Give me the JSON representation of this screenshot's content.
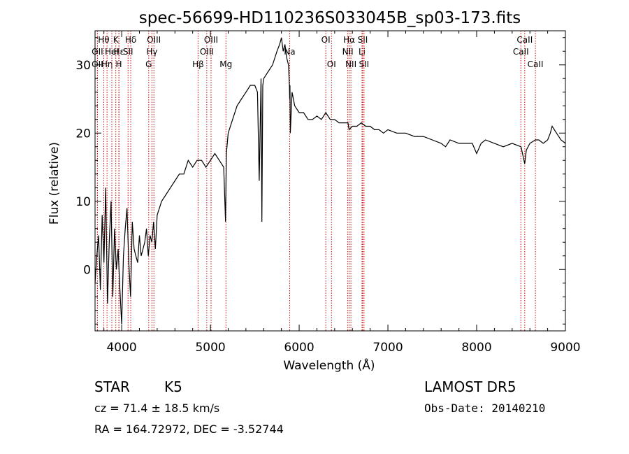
{
  "chart_data": {
    "type": "line",
    "title": "spec-56699-HD110236S033045B_sp03-173.fits",
    "xlabel": "Wavelength (Å)",
    "ylabel": "Flux (relative)",
    "xlim": [
      3700,
      9000
    ],
    "ylim": [
      -9,
      35
    ],
    "x_ticks": [
      4000,
      5000,
      6000,
      7000,
      8000,
      9000
    ],
    "y_ticks": [
      0,
      10,
      20,
      30
    ],
    "grid": false,
    "series": [
      {
        "x": [
          3700,
          3720,
          3740,
          3760,
          3780,
          3800,
          3820,
          3840,
          3860,
          3880,
          3900,
          3920,
          3940,
          3960,
          3980,
          4000,
          4020,
          4040,
          4060,
          4080,
          4100,
          4120,
          4140,
          4160,
          4180,
          4200,
          4220,
          4240,
          4260,
          4280,
          4300,
          4320,
          4340,
          4360,
          4380,
          4400,
          4450,
          4500,
          4550,
          4600,
          4650,
          4700,
          4750,
          4800,
          4850,
          4900,
          4950,
          5000,
          5050,
          5100,
          5150,
          5170,
          5180,
          5200,
          5250,
          5300,
          5350,
          5400,
          5450,
          5500,
          5530,
          5550,
          5570,
          5580,
          5590,
          5600,
          5650,
          5700,
          5750,
          5780,
          5800,
          5820,
          5840,
          5860,
          5880,
          5890,
          5893,
          5896,
          5900,
          5920,
          5950,
          6000,
          6050,
          6100,
          6150,
          6200,
          6250,
          6300,
          6350,
          6400,
          6450,
          6500,
          6550,
          6563,
          6600,
          6650,
          6700,
          6750,
          6800,
          6850,
          6900,
          6950,
          7000,
          7100,
          7200,
          7300,
          7400,
          7500,
          7600,
          7650,
          7700,
          7800,
          7900,
          7950,
          8000,
          8050,
          8100,
          8200,
          8300,
          8400,
          8500,
          8542,
          8560,
          8600,
          8662,
          8700,
          8750,
          8800,
          8830,
          8850,
          8900,
          8950,
          9000
        ],
        "y": [
          -2,
          2,
          5,
          -3,
          8,
          1,
          12,
          -5,
          4,
          10,
          -4,
          6,
          0,
          3,
          -3,
          -8,
          2,
          6,
          9,
          1,
          -4,
          7,
          3,
          2,
          1,
          5,
          2,
          3,
          4,
          6,
          2,
          5,
          4,
          7,
          3,
          8,
          10,
          11,
          12,
          13,
          14,
          14,
          16,
          15,
          16,
          16,
          15,
          16,
          17,
          16,
          15,
          7,
          17,
          20,
          22,
          24,
          25,
          26,
          27,
          27,
          26,
          13,
          28,
          7,
          27,
          28,
          29,
          30,
          32,
          33,
          34,
          32,
          33,
          31,
          30,
          27,
          25,
          27,
          20,
          26,
          24,
          23,
          23,
          22,
          22,
          22.5,
          22,
          23,
          22,
          22,
          21.5,
          21.5,
          21.5,
          20.5,
          21,
          21,
          21.5,
          21,
          21,
          20.5,
          20.5,
          20,
          20.5,
          20,
          20,
          19.5,
          19.5,
          19,
          18.5,
          18,
          19,
          18.5,
          18.5,
          18.5,
          17,
          18.5,
          19,
          18.5,
          18,
          18.5,
          18,
          15.5,
          17.5,
          18.5,
          19,
          19,
          18.5,
          19,
          20,
          21,
          20,
          19,
          18.5
        ]
      }
    ],
    "line_markers": [
      {
        "label": "Hθ",
        "x": 3798,
        "row": 0
      },
      {
        "label": "Hη",
        "x": 3835,
        "row": 2
      },
      {
        "label": "K",
        "x": 3934,
        "row": 0
      },
      {
        "label": "Hε",
        "x": 3970,
        "row": 1
      },
      {
        "label": "H",
        "x": 3968,
        "row": 2
      },
      {
        "label": "OII",
        "x": 3727,
        "row": 1
      },
      {
        "label": "OII",
        "x": 3727,
        "row": 2
      },
      {
        "label": "HeI",
        "x": 3889,
        "row": 1
      },
      {
        "label": "Hδ",
        "x": 4102,
        "row": 0
      },
      {
        "label": "SII",
        "x": 4072,
        "row": 1
      },
      {
        "label": "OIII",
        "x": 4363,
        "row": 0
      },
      {
        "label": "Hγ",
        "x": 4341,
        "row": 1
      },
      {
        "label": "G",
        "x": 4305,
        "row": 2
      },
      {
        "label": "Hβ",
        "x": 4861,
        "row": 2
      },
      {
        "label": "OIII",
        "x": 4959,
        "row": 1
      },
      {
        "label": "OIII",
        "x": 5007,
        "row": 0
      },
      {
        "label": "Mg",
        "x": 5175,
        "row": 2
      },
      {
        "label": "Na",
        "x": 5893,
        "row": 1
      },
      {
        "label": "OI",
        "x": 6300,
        "row": 0
      },
      {
        "label": "OI",
        "x": 6364,
        "row": 2
      },
      {
        "label": "Hα",
        "x": 6563,
        "row": 0
      },
      {
        "label": "NII",
        "x": 6548,
        "row": 1
      },
      {
        "label": "NII",
        "x": 6583,
        "row": 2
      },
      {
        "label": "SII",
        "x": 6716,
        "row": 0
      },
      {
        "label": "Li",
        "x": 6708,
        "row": 1
      },
      {
        "label": "SII",
        "x": 6731,
        "row": 2
      },
      {
        "label": "CaII",
        "x": 8542,
        "row": 0
      },
      {
        "label": "CaII",
        "x": 8498,
        "row": 1
      },
      {
        "label": "CaII",
        "x": 8662,
        "row": 2
      }
    ],
    "marker_color": "#cc0000"
  },
  "info": {
    "object_class": "STAR",
    "subclass": "K5",
    "survey": "LAMOST DR5",
    "redshift": "cz = 71.4 ± 18.5 km/s",
    "obs_date": "Obs-Date: 20140210",
    "coords": "RA = 164.72972, DEC =  -3.52744"
  }
}
